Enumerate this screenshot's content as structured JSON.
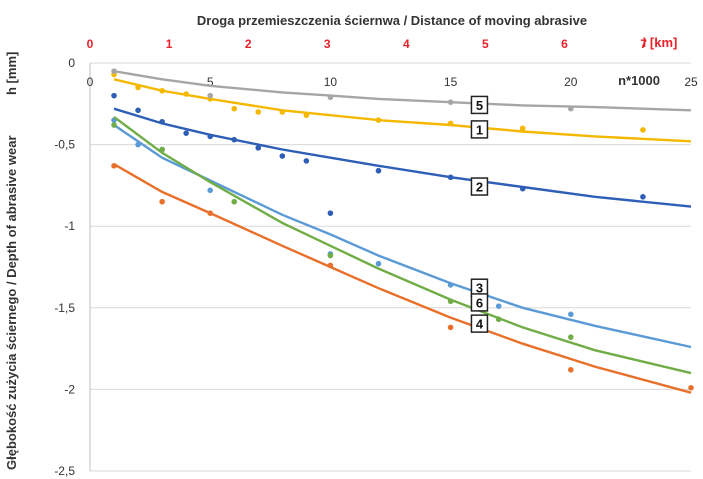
{
  "chart_data": {
    "type": "scatter",
    "title": "Droga przemieszczenia ściernwa / Distance of moving abrasive",
    "ylabel": "Głębokość zużycia ściernego / Depth of abrasive wear",
    "ylabel_unit": "h [mm]",
    "x_axis": {
      "label": "n*1000",
      "range": [
        0,
        25
      ],
      "ticks": [
        "0",
        "5",
        "10",
        "15",
        "20",
        "25"
      ]
    },
    "x2_axis": {
      "label": "l [km]",
      "range": [
        0,
        7.6
      ],
      "ticks": [
        "0",
        "1",
        "2",
        "3",
        "4",
        "5",
        "6",
        "7"
      ],
      "color": "#e8212a"
    },
    "y_axis": {
      "range": [
        -2.5,
        0
      ],
      "ticks": [
        "0",
        "-0,5",
        "-1",
        "-1,5",
        "-2",
        "-2,5"
      ],
      "grid": true
    },
    "series": [
      {
        "name": "1",
        "color": "#f5b800",
        "points": [
          [
            1,
            -0.07
          ],
          [
            2,
            -0.15
          ],
          [
            3,
            -0.17
          ],
          [
            4,
            -0.19
          ],
          [
            5,
            -0.22
          ],
          [
            6,
            -0.28
          ],
          [
            7,
            -0.3
          ],
          [
            8,
            -0.3
          ],
          [
            9,
            -0.32
          ],
          [
            12,
            -0.35
          ],
          [
            15,
            -0.37
          ],
          [
            18,
            -0.4
          ],
          [
            23,
            -0.41
          ]
        ],
        "trend": [
          [
            1,
            -0.1
          ],
          [
            3,
            -0.17
          ],
          [
            5,
            -0.22
          ],
          [
            8,
            -0.29
          ],
          [
            10,
            -0.32
          ],
          [
            12,
            -0.35
          ],
          [
            15,
            -0.38
          ],
          [
            18,
            -0.42
          ],
          [
            21,
            -0.45
          ],
          [
            25,
            -0.48
          ]
        ]
      },
      {
        "name": "2",
        "color": "#2e5eb5",
        "points": [
          [
            1,
            -0.2
          ],
          [
            2,
            -0.29
          ],
          [
            3,
            -0.36
          ],
          [
            4,
            -0.43
          ],
          [
            5,
            -0.45
          ],
          [
            6,
            -0.47
          ],
          [
            7,
            -0.52
          ],
          [
            8,
            -0.57
          ],
          [
            9,
            -0.6
          ],
          [
            10,
            -0.92
          ],
          [
            12,
            -0.66
          ],
          [
            15,
            -0.7
          ],
          [
            18,
            -0.77
          ],
          [
            23,
            -0.82
          ]
        ],
        "trend": [
          [
            1,
            -0.28
          ],
          [
            3,
            -0.37
          ],
          [
            5,
            -0.44
          ],
          [
            8,
            -0.53
          ],
          [
            10,
            -0.58
          ],
          [
            12,
            -0.63
          ],
          [
            15,
            -0.7
          ],
          [
            18,
            -0.76
          ],
          [
            21,
            -0.82
          ],
          [
            25,
            -0.88
          ]
        ]
      },
      {
        "name": "3",
        "color": "#5b9bd5",
        "points": [
          [
            1,
            -0.35
          ],
          [
            2,
            -0.5
          ],
          [
            3,
            -0.53
          ],
          [
            5,
            -0.78
          ],
          [
            10,
            -1.17
          ],
          [
            12,
            -1.23
          ],
          [
            15,
            -1.36
          ],
          [
            17,
            -1.49
          ],
          [
            20,
            -1.54
          ]
        ],
        "trend": [
          [
            1,
            -0.38
          ],
          [
            3,
            -0.58
          ],
          [
            5,
            -0.72
          ],
          [
            8,
            -0.93
          ],
          [
            10,
            -1.05
          ],
          [
            12,
            -1.18
          ],
          [
            15,
            -1.35
          ],
          [
            18,
            -1.5
          ],
          [
            21,
            -1.61
          ],
          [
            25,
            -1.74
          ]
        ]
      },
      {
        "name": "4",
        "color": "#e8702a",
        "points": [
          [
            1,
            -0.63
          ],
          [
            3,
            -0.85
          ],
          [
            5,
            -0.92
          ],
          [
            10,
            -1.24
          ],
          [
            15,
            -1.62
          ],
          [
            20,
            -1.88
          ],
          [
            25,
            -1.99
          ]
        ],
        "trend": [
          [
            1,
            -0.62
          ],
          [
            3,
            -0.79
          ],
          [
            5,
            -0.92
          ],
          [
            8,
            -1.12
          ],
          [
            10,
            -1.25
          ],
          [
            12,
            -1.38
          ],
          [
            15,
            -1.56
          ],
          [
            18,
            -1.72
          ],
          [
            21,
            -1.86
          ],
          [
            25,
            -2.02
          ]
        ]
      },
      {
        "name": "5",
        "color": "#a6a6a6",
        "points": [
          [
            1,
            -0.05
          ],
          [
            5,
            -0.2
          ],
          [
            10,
            -0.21
          ],
          [
            15,
            -0.24
          ],
          [
            20,
            -0.28
          ]
        ],
        "trend": [
          [
            1,
            -0.05
          ],
          [
            3,
            -0.1
          ],
          [
            5,
            -0.14
          ],
          [
            8,
            -0.18
          ],
          [
            10,
            -0.2
          ],
          [
            12,
            -0.22
          ],
          [
            15,
            -0.24
          ],
          [
            18,
            -0.26
          ],
          [
            21,
            -0.27
          ],
          [
            25,
            -0.29
          ]
        ]
      },
      {
        "name": "6",
        "color": "#70ad47",
        "points": [
          [
            1,
            -0.38
          ],
          [
            3,
            -0.53
          ],
          [
            6,
            -0.85
          ],
          [
            10,
            -1.18
          ],
          [
            15,
            -1.46
          ],
          [
            17,
            -1.57
          ],
          [
            20,
            -1.68
          ]
        ],
        "trend": [
          [
            1,
            -0.33
          ],
          [
            3,
            -0.55
          ],
          [
            5,
            -0.73
          ],
          [
            8,
            -0.98
          ],
          [
            10,
            -1.12
          ],
          [
            12,
            -1.26
          ],
          [
            15,
            -1.45
          ],
          [
            18,
            -1.62
          ],
          [
            21,
            -1.76
          ],
          [
            25,
            -1.9
          ]
        ]
      }
    ],
    "legend": "inline-boxes"
  }
}
